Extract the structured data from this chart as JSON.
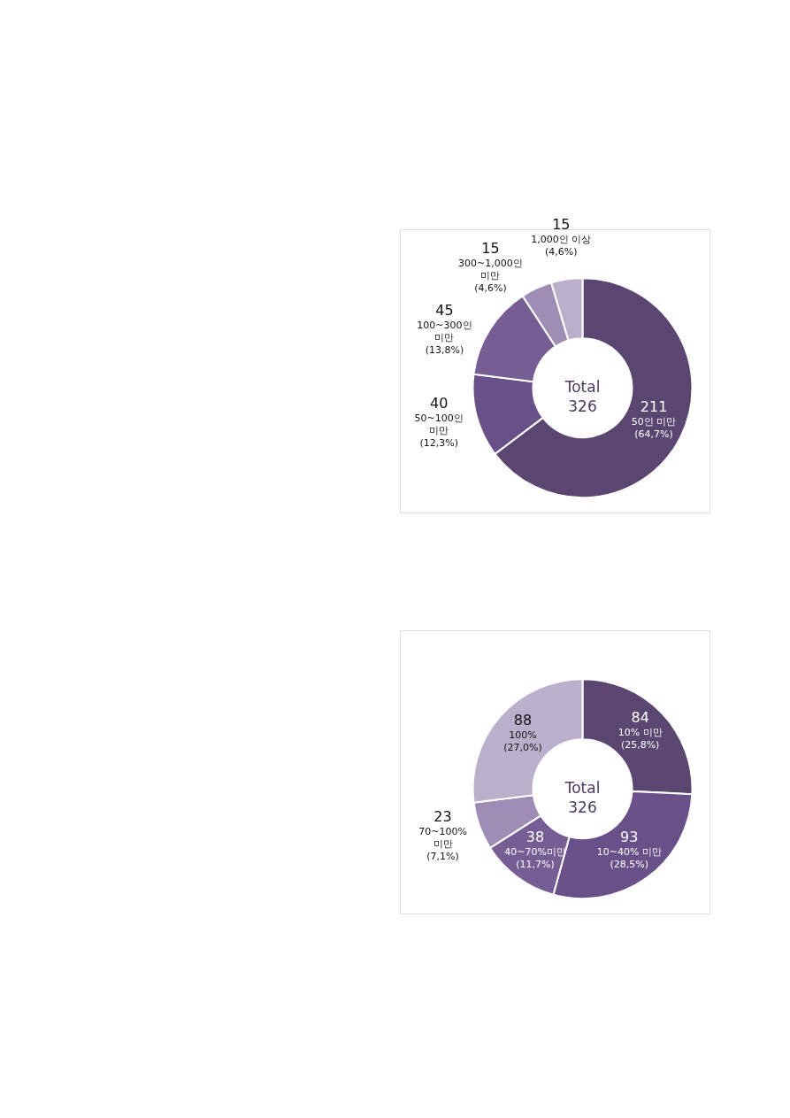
{
  "chart_data": [
    {
      "type": "donut",
      "categories": [
        "50인 미만",
        "50~100인 미만",
        "100~300인 미만",
        "300~1,000인 미만",
        "1,000인 이상"
      ],
      "values": [
        211,
        40,
        45,
        15,
        15
      ],
      "colors": [
        "#5b4571",
        "#6a5088",
        "#765d94",
        "#a08db6",
        "#bbb0cc"
      ],
      "data_labels": true,
      "legend": false,
      "annotations": [
        "Total 326",
        {
          "text": "(64,7%)",
          "x": "50인 미만"
        },
        {
          "text": "(12,3%)",
          "x": "50~100인 미만"
        },
        {
          "text": "(13,8%)",
          "x": "100~300인 미만"
        },
        {
          "text": "(4,6%)",
          "x": "300~1,000인 미만"
        },
        {
          "text": "(4,6%)",
          "x": "1,000인 이상"
        }
      ]
    },
    {
      "type": "donut",
      "categories": [
        "10% 미만",
        "10~40% 미만",
        "40~70%미만",
        "70~100% 미만",
        "100%"
      ],
      "values": [
        84,
        93,
        38,
        23,
        88
      ],
      "colors": [
        "#5b4571",
        "#6a5088",
        "#765d94",
        "#a08db6",
        "#bbb0cc"
      ],
      "data_labels": true,
      "legend": false,
      "annotations": [
        "Total 326",
        {
          "text": "(25,8%)",
          "x": "10% 미만"
        },
        {
          "text": "(28,5%)",
          "x": "10~40% 미만"
        },
        {
          "text": "(11,7%)",
          "x": "40~70%미만"
        },
        {
          "text": "(7,1%)",
          "x": "70~100% 미만"
        },
        {
          "text": "(27,0%)",
          "x": "100%"
        }
      ]
    }
  ]
}
